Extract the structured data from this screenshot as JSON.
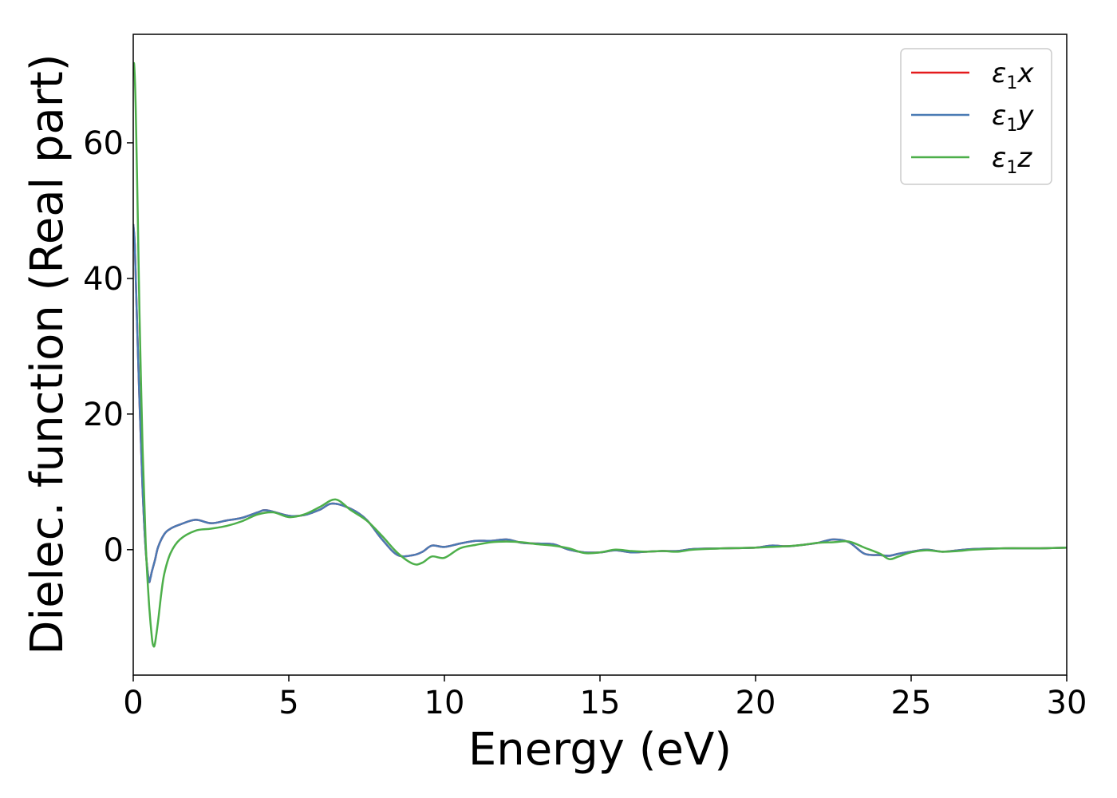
{
  "chart_data": {
    "type": "line",
    "title": "",
    "xlabel": "Energy (eV)",
    "ylabel": "Dielec. function (Real part)",
    "xlim": [
      0,
      30
    ],
    "ylim": [
      -18.5,
      76
    ],
    "xticks": [
      0,
      5,
      10,
      15,
      20,
      25,
      30
    ],
    "yticks": [
      0,
      20,
      40,
      60
    ],
    "grid": false,
    "legend_position": "top-right",
    "series": [
      {
        "name": "ε1x",
        "sym": "ε",
        "sub": "1",
        "var": "x",
        "color": "#e41a1c",
        "x": [
          0,
          0.05,
          0.1,
          0.2,
          0.3,
          0.4,
          0.5,
          0.55,
          0.6,
          0.7,
          0.8,
          1.0,
          1.2,
          1.5,
          2.0,
          2.5,
          3.0,
          3.5,
          4.0,
          4.3,
          5.0,
          5.5,
          6.0,
          6.4,
          7.0,
          7.5,
          8.0,
          8.5,
          9.0,
          9.3,
          9.6,
          10.0,
          10.5,
          11.0,
          11.5,
          12.0,
          12.5,
          13.0,
          13.5,
          14.0,
          14.5,
          15.0,
          15.5,
          16.0,
          16.5,
          17.0,
          17.5,
          18.0,
          19.0,
          20.0,
          20.5,
          21.0,
          21.5,
          22.0,
          22.5,
          23.0,
          23.5,
          24.0,
          24.3,
          24.6,
          25.0,
          25.5,
          26.0,
          26.5,
          27.0,
          28.0,
          29.0,
          30.0
        ],
        "y": [
          48,
          45,
          37,
          22,
          9,
          0,
          -4.5,
          -4.2,
          -3.2,
          -1.5,
          0.4,
          2.3,
          3.1,
          3.7,
          4.4,
          3.9,
          4.3,
          4.7,
          5.5,
          5.8,
          5.0,
          5.1,
          5.9,
          6.8,
          6.0,
          4.4,
          1.5,
          -0.8,
          -0.8,
          -0.3,
          0.6,
          0.4,
          0.9,
          1.3,
          1.3,
          1.5,
          1.0,
          0.9,
          0.8,
          0.0,
          -0.4,
          -0.4,
          -0.1,
          -0.4,
          -0.3,
          -0.2,
          -0.2,
          0.1,
          0.2,
          0.3,
          0.6,
          0.5,
          0.7,
          1.0,
          1.5,
          1.1,
          -0.6,
          -0.8,
          -0.9,
          -0.6,
          -0.3,
          0.0,
          -0.3,
          -0.1,
          0.1,
          0.2,
          0.2,
          0.3
        ]
      },
      {
        "name": "ε1y",
        "sym": "ε",
        "sub": "1",
        "var": "y",
        "color": "#4a7ab4",
        "x": [
          0,
          0.05,
          0.1,
          0.2,
          0.3,
          0.4,
          0.5,
          0.55,
          0.6,
          0.7,
          0.8,
          1.0,
          1.2,
          1.5,
          2.0,
          2.5,
          3.0,
          3.5,
          4.0,
          4.3,
          5.0,
          5.5,
          6.0,
          6.4,
          7.0,
          7.5,
          8.0,
          8.5,
          9.0,
          9.3,
          9.6,
          10.0,
          10.5,
          11.0,
          11.5,
          12.0,
          12.5,
          13.0,
          13.5,
          14.0,
          14.5,
          15.0,
          15.5,
          16.0,
          16.5,
          17.0,
          17.5,
          18.0,
          19.0,
          20.0,
          20.5,
          21.0,
          21.5,
          22.0,
          22.5,
          23.0,
          23.5,
          24.0,
          24.3,
          24.6,
          25.0,
          25.5,
          26.0,
          26.5,
          27.0,
          28.0,
          29.0,
          30.0
        ],
        "y": [
          48,
          45,
          37,
          22,
          9,
          0,
          -4.5,
          -4.2,
          -3.2,
          -1.5,
          0.4,
          2.3,
          3.1,
          3.7,
          4.4,
          3.9,
          4.3,
          4.7,
          5.5,
          5.8,
          5.0,
          5.1,
          5.9,
          6.8,
          6.0,
          4.4,
          1.5,
          -0.8,
          -0.8,
          -0.3,
          0.6,
          0.4,
          0.9,
          1.3,
          1.3,
          1.5,
          1.0,
          0.9,
          0.8,
          0.0,
          -0.4,
          -0.4,
          -0.1,
          -0.4,
          -0.3,
          -0.2,
          -0.2,
          0.1,
          0.2,
          0.3,
          0.6,
          0.5,
          0.7,
          1.0,
          1.5,
          1.1,
          -0.6,
          -0.8,
          -0.9,
          -0.6,
          -0.3,
          0.0,
          -0.3,
          -0.1,
          0.1,
          0.2,
          0.2,
          0.3
        ]
      },
      {
        "name": "ε1z",
        "sym": "ε",
        "sub": "1",
        "var": "z",
        "color": "#4daf4a",
        "x": [
          0,
          0.03,
          0.08,
          0.15,
          0.2,
          0.3,
          0.4,
          0.5,
          0.6,
          0.65,
          0.7,
          0.8,
          0.9,
          1.0,
          1.2,
          1.5,
          2.0,
          2.5,
          3.0,
          3.5,
          4.0,
          4.5,
          5.0,
          5.5,
          6.0,
          6.5,
          7.0,
          7.5,
          8.0,
          8.5,
          9.0,
          9.3,
          9.6,
          10.0,
          10.5,
          11.0,
          11.5,
          12.0,
          12.5,
          13.0,
          13.5,
          14.0,
          14.5,
          15.0,
          15.5,
          16.0,
          16.5,
          17.0,
          17.5,
          18.0,
          19.0,
          20.0,
          20.5,
          21.0,
          21.5,
          22.0,
          22.5,
          23.0,
          23.5,
          24.0,
          24.3,
          24.6,
          25.0,
          25.5,
          26.0,
          26.5,
          27.0,
          28.0,
          29.0,
          30.0
        ],
        "y": [
          70.5,
          71.5,
          65,
          48,
          35,
          15,
          1,
          -7.5,
          -13,
          -14.2,
          -13.8,
          -10.5,
          -6.5,
          -3.5,
          -0.5,
          1.5,
          2.8,
          3.1,
          3.5,
          4.2,
          5.2,
          5.5,
          4.8,
          5.2,
          6.3,
          7.4,
          5.8,
          4.3,
          2.0,
          -0.5,
          -2.1,
          -1.9,
          -1.0,
          -1.2,
          0.2,
          0.7,
          1.1,
          1.2,
          1.1,
          0.8,
          0.6,
          0.2,
          -0.5,
          -0.4,
          0.0,
          -0.2,
          -0.3,
          -0.2,
          -0.3,
          0.0,
          0.2,
          0.3,
          0.4,
          0.5,
          0.7,
          1.0,
          1.1,
          1.2,
          0.3,
          -0.6,
          -1.4,
          -1.0,
          -0.4,
          -0.1,
          -0.3,
          -0.2,
          0.0,
          0.2,
          0.2,
          0.3
        ]
      }
    ]
  }
}
